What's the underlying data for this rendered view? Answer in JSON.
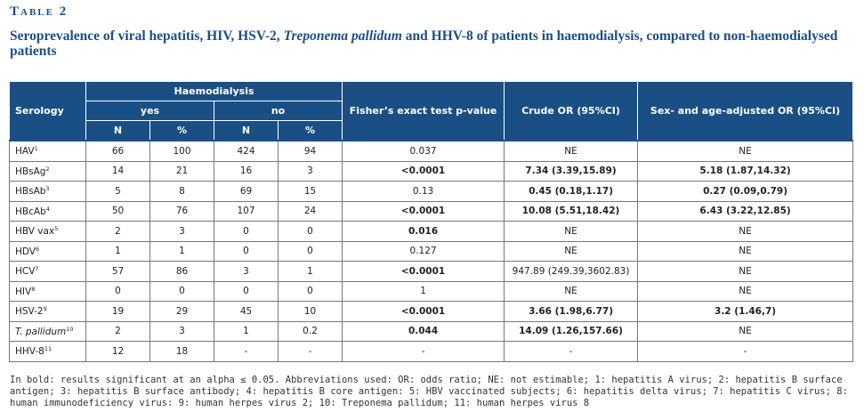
{
  "label": "Table 2",
  "title": {
    "part1": "Seroprevalence of viral hepatitis, HIV, HSV-2, ",
    "italic": "Treponema pallidum",
    "part2": " and HHV-8 of patients in haemodialysis, compared to non-haemodialysed patients"
  },
  "headers": {
    "serology": "Serology",
    "haemodialysis": "Haemodialysis",
    "yes": "yes",
    "no": "no",
    "n": "N",
    "pct": "%",
    "fisher": "Fisher’s exact test p-value",
    "crude": "Crude OR (95%CI)",
    "adjusted": "Sex- and age-adjusted OR (95%CI)"
  },
  "rows": [
    {
      "name": "HAV",
      "sup": "1",
      "yes_n": "66",
      "yes_pct": "100",
      "no_n": "424",
      "no_pct": "94",
      "p": "0.037",
      "crude": "NE",
      "adj": "NE"
    },
    {
      "name": "HBsAg",
      "sup": "2",
      "yes_n": "14",
      "yes_pct": "21",
      "no_n": "16",
      "no_pct": "3",
      "p": "<0.0001",
      "crude": "7.34 (3.39,15.89)",
      "adj": "5.18 (1.87,14.32)"
    },
    {
      "name": "HBsAb",
      "sup": "3",
      "yes_n": "5",
      "yes_pct": "8",
      "no_n": "69",
      "no_pct": "15",
      "p": "0.13",
      "crude": "0.45 (0.18,1.17)",
      "adj": "0.27 (0.09,0.79)"
    },
    {
      "name": "HBcAb",
      "sup": "4",
      "yes_n": "50",
      "yes_pct": "76",
      "no_n": "107",
      "no_pct": "24",
      "p": "<0.0001",
      "crude": "10.08 (5.51,18.42)",
      "adj": "6.43 (3.22,12.85)"
    },
    {
      "name": "HBV vax",
      "sup": "5",
      "yes_n": "2",
      "yes_pct": "3",
      "no_n": "0",
      "no_pct": "0",
      "p": "0.016",
      "crude": "NE",
      "adj": "NE"
    },
    {
      "name": "HDV",
      "sup": "6",
      "yes_n": "1",
      "yes_pct": "1",
      "no_n": "0",
      "no_pct": "0",
      "p": "0.127",
      "crude": "NE",
      "adj": "NE"
    },
    {
      "name": "HCV",
      "sup": "7",
      "yes_n": "57",
      "yes_pct": "86",
      "no_n": "3",
      "no_pct": "1",
      "p": "<0.0001",
      "crude": "947.89 (249.39,3602.83)",
      "adj": "NE"
    },
    {
      "name": "HIV",
      "sup": "8",
      "yes_n": "0",
      "yes_pct": "0",
      "no_n": "0",
      "no_pct": "0",
      "p": "1",
      "crude": "NE",
      "adj": "NE"
    },
    {
      "name": "HSV-2",
      "sup": "9",
      "yes_n": "19",
      "yes_pct": "29",
      "no_n": "45",
      "no_pct": "10",
      "p": "<0.0001",
      "crude": "3.66 (1.98,6.77)",
      "adj": "3.2 (1.46,7)"
    },
    {
      "name": "T. pallidum",
      "sup": "10",
      "yes_n": "2",
      "yes_pct": "3",
      "no_n": "1",
      "no_pct": "0.2",
      "p": "0.044",
      "crude": "14.09 (1.26,157.66)",
      "adj": "NE"
    },
    {
      "name": "HHV-8",
      "sup": "11",
      "yes_n": "12",
      "yes_pct": "18",
      "no_n": "-",
      "no_pct": "-",
      "p": "-",
      "crude": "-",
      "adj": "-"
    }
  ],
  "footnote": "In bold: results significant at an alpha ≤ 0.05. Abbreviations used: OR: odds ratio; NE: not estimable; 1: hepatitis A virus; 2: hepatitis B surface antigen; 3:  hepatitis B surface antibody; 4: hepatitis B core antigen: 5: HBV vaccinated subjects; 6: hepatitis delta virus; 7: hepatitis C virus; 8: human immunodeficiency virus: 9: human herpes virus 2; 10: Treponema pallidum; 11:  human herpes virus 8"
}
